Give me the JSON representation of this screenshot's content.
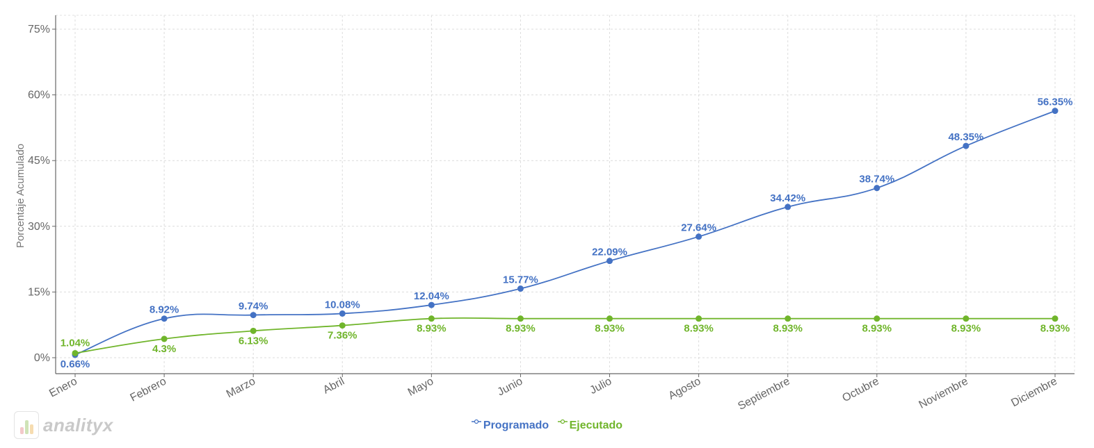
{
  "chart_data": {
    "type": "line",
    "categories": [
      "Enero",
      "Febrero",
      "Marzo",
      "Abril",
      "Mayo",
      "Junio",
      "Julio",
      "Agosto",
      "Septiembre",
      "Octubre",
      "Noviembre",
      "Diciembre"
    ],
    "series": [
      {
        "name": "Programado",
        "values": [
          0.66,
          8.92,
          9.74,
          10.08,
          12.04,
          15.77,
          22.09,
          27.64,
          34.42,
          38.74,
          48.35,
          56.35
        ],
        "labels": [
          "0.66%",
          "8.92%",
          "9.74%",
          "10.08%",
          "12.04%",
          "15.77%",
          "22.09%",
          "27.64%",
          "34.42%",
          "38.74%",
          "48.35%",
          "56.35%"
        ],
        "color": "#4472c4"
      },
      {
        "name": "Ejecutado",
        "values": [
          1.04,
          4.3,
          6.13,
          7.36,
          8.93,
          8.93,
          8.93,
          8.93,
          8.93,
          8.93,
          8.93,
          8.93
        ],
        "labels": [
          "1.04%",
          "4.3%",
          "6.13%",
          "7.36%",
          "8.93%",
          "8.93%",
          "8.93%",
          "8.93%",
          "8.93%",
          "8.93%",
          "8.93%",
          "8.93%"
        ],
        "color": "#70b52b"
      }
    ],
    "title": "",
    "xlabel": "",
    "ylabel": "Porcentaje Acumulado",
    "ylim": [
      -3.5,
      78
    ],
    "yticks": [
      0,
      15,
      30,
      45,
      60,
      75
    ],
    "ytick_labels": [
      "0%",
      "15%",
      "30%",
      "45%",
      "60%",
      "75%"
    ],
    "grid": true,
    "legend_position": "bottom-center"
  },
  "legend": {
    "programado": "Programado",
    "ejecutado": "Ejecutado"
  },
  "logo": {
    "text": "analityx"
  }
}
